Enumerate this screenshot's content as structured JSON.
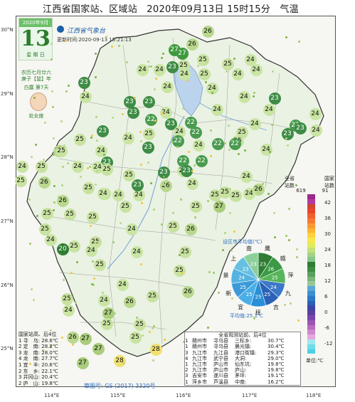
{
  "title": "江西省国家站、区域站　2020年09月13日 15时15分　气温",
  "calendar": {
    "date": "2020年9月",
    "day": "13",
    "weekday": "星 期 日",
    "lunar1": "农历七月廿六",
    "lunar2": "庚子【鼠】年",
    "solar_term": "白露 第7天",
    "zodiac": "处女座"
  },
  "logo_text": "江西省气象台",
  "update_time": "更新时间:2020-09-13 15:21:13",
  "lat_labels": [
    "30°N",
    "29°N",
    "28°N",
    "27°N",
    "26°N",
    "25°N"
  ],
  "lon_labels": [
    "114°E",
    "115°E",
    "116°E",
    "117°E",
    "118°E"
  ],
  "stations": [
    {
      "v": "26",
      "c": "#b9d88e"
    },
    {
      "v": "27",
      "c": "#3f9a3f"
    },
    {
      "v": "27",
      "c": "#3f9a3f"
    },
    {
      "v": "26",
      "c": "#b9d88e"
    },
    {
      "v": "25",
      "c": "#c8e2a0"
    },
    {
      "v": "24",
      "c": "#c9e5a3"
    },
    {
      "v": "25",
      "c": "#c8e2a0"
    },
    {
      "v": "23",
      "c": "#3e8c45"
    },
    {
      "v": "25",
      "c": "#c8e2a0"
    },
    {
      "v": "24",
      "c": "#c9e5a3"
    },
    {
      "v": "23",
      "c": "#3e8c45"
    },
    {
      "v": "24",
      "c": "#c9e5a3"
    },
    {
      "v": "24",
      "c": "#c9e5a3"
    },
    {
      "v": "24",
      "c": "#c9e5a3"
    },
    {
      "v": "24",
      "c": "#c9e5a3"
    },
    {
      "v": "25",
      "c": "#c8e2a0"
    },
    {
      "v": "24",
      "c": "#c9e5a3"
    },
    {
      "v": "24",
      "c": "#c9e5a3"
    },
    {
      "v": "23",
      "c": "#3e8c45"
    },
    {
      "v": "23",
      "c": "#3e8c45"
    },
    {
      "v": "24",
      "c": "#c9e5a3"
    },
    {
      "v": "22",
      "c": "#4a9b4f"
    },
    {
      "v": "23",
      "c": "#3e8c45"
    },
    {
      "v": "23",
      "c": "#3e8c45"
    },
    {
      "v": "24",
      "c": "#c9e5a3"
    },
    {
      "v": "22",
      "c": "#4a9b4f"
    },
    {
      "v": "24",
      "c": "#c9e5a3"
    },
    {
      "v": "24",
      "c": "#c9e5a3"
    },
    {
      "v": "24",
      "c": "#c9e5a3"
    },
    {
      "v": "23",
      "c": "#3e8c45"
    },
    {
      "v": "24",
      "c": "#c9e5a3"
    },
    {
      "v": "22",
      "c": "#4a9b4f"
    },
    {
      "v": "23",
      "c": "#3e8c45"
    },
    {
      "v": "24",
      "c": "#c9e5a3"
    },
    {
      "v": "23",
      "c": "#3e8c45"
    },
    {
      "v": "24",
      "c": "#c9e5a3"
    },
    {
      "v": "24",
      "c": "#c9e5a3"
    },
    {
      "v": "25",
      "c": "#c8e2a0"
    },
    {
      "v": "24",
      "c": "#c9e5a3"
    },
    {
      "v": "25",
      "c": "#c8e2a0"
    },
    {
      "v": "24",
      "c": "#c9e5a3"
    },
    {
      "v": "22",
      "c": "#4a9b4f"
    },
    {
      "v": "22",
      "c": "#4a9b4f"
    },
    {
      "v": "22",
      "c": "#4a9b4f"
    },
    {
      "v": "23",
      "c": "#3e8c45"
    },
    {
      "v": "25",
      "c": "#c8e2a0"
    },
    {
      "v": "24",
      "c": "#c9e5a3"
    },
    {
      "v": "24",
      "c": "#c9e5a3"
    },
    {
      "v": "25",
      "c": "#c8e2a0"
    },
    {
      "v": "23",
      "c": "#3e8c45"
    },
    {
      "v": "22",
      "c": "#4a9b4f"
    },
    {
      "v": "22",
      "c": "#4a9b4f"
    },
    {
      "v": "23",
      "c": "#3e8c45"
    },
    {
      "v": "24",
      "c": "#c9e5a3"
    },
    {
      "v": "25",
      "c": "#c8e2a0"
    },
    {
      "v": "26",
      "c": "#b9d88e"
    },
    {
      "v": "24",
      "c": "#c9e5a3"
    },
    {
      "v": "23",
      "c": "#3e8c45"
    },
    {
      "v": "25",
      "c": "#c8e2a0"
    },
    {
      "v": "25",
      "c": "#c8e2a0"
    },
    {
      "v": "24",
      "c": "#c9e5a3"
    },
    {
      "v": "25",
      "c": "#c8e2a0"
    },
    {
      "v": "24",
      "c": "#c9e5a3"
    },
    {
      "v": "26",
      "c": "#b9d88e"
    },
    {
      "v": "25",
      "c": "#c8e2a0"
    },
    {
      "v": "25",
      "c": "#c8e2a0"
    },
    {
      "v": "25",
      "c": "#c8e2a0"
    },
    {
      "v": "24",
      "c": "#c9e5a3"
    },
    {
      "v": "26",
      "c": "#b9d88e"
    },
    {
      "v": "24",
      "c": "#c9e5a3"
    },
    {
      "v": "22",
      "c": "#4a9b4f"
    },
    {
      "v": "23",
      "c": "#3e8c45"
    },
    {
      "v": "23",
      "c": "#3e8c45"
    },
    {
      "v": "24",
      "c": "#c9e5a3"
    },
    {
      "v": "24",
      "c": "#c9e5a3"
    },
    {
      "v": "26",
      "c": "#b9d88e"
    },
    {
      "v": "24",
      "c": "#c9e5a3"
    },
    {
      "v": "25",
      "c": "#c8e2a0"
    },
    {
      "v": "25",
      "c": "#c8e2a0"
    },
    {
      "v": "27",
      "c": "#aacd7c"
    },
    {
      "v": "25",
      "c": "#c8e2a0"
    },
    {
      "v": "26",
      "c": "#b9d88e"
    },
    {
      "v": "25",
      "c": "#c8e2a0"
    },
    {
      "v": "25",
      "c": "#c8e2a0"
    },
    {
      "v": "24",
      "c": "#c9e5a3"
    },
    {
      "v": "25",
      "c": "#c8e2a0"
    },
    {
      "v": "25",
      "c": "#c8e2a0"
    },
    {
      "v": "25",
      "c": "#c8e2a0"
    },
    {
      "v": "24",
      "c": "#c9e5a3"
    },
    {
      "v": "26",
      "c": "#b9d88e"
    },
    {
      "v": "25",
      "c": "#c8e2a0"
    },
    {
      "v": "25",
      "c": "#c8e2a0"
    },
    {
      "v": "25",
      "c": "#c8e2a0"
    },
    {
      "v": "24",
      "c": "#c9e5a3"
    },
    {
      "v": "25",
      "c": "#c8e2a0"
    },
    {
      "v": "25",
      "c": "#c8e2a0"
    },
    {
      "v": "24",
      "c": "#c9e5a3"
    },
    {
      "v": "25",
      "c": "#c8e2a0"
    },
    {
      "v": "25",
      "c": "#c8e2a0"
    },
    {
      "v": "24",
      "c": "#c9e5a3"
    },
    {
      "v": "26",
      "c": "#b9d88e"
    },
    {
      "v": "25",
      "c": "#c8e2a0"
    },
    {
      "v": "25",
      "c": "#c8e2a0"
    },
    {
      "v": "24",
      "c": "#c9e5a3"
    },
    {
      "v": "26",
      "c": "#b9d88e"
    },
    {
      "v": "24",
      "c": "#c9e5a3"
    },
    {
      "v": "20",
      "c": "#2e7d32"
    },
    {
      "v": "24",
      "c": "#c9e5a3"
    },
    {
      "v": "27",
      "c": "#aacd7c"
    },
    {
      "v": "25",
      "c": "#c8e2a0"
    },
    {
      "v": "27",
      "c": "#aacd7c"
    },
    {
      "v": "27",
      "c": "#aacd7c"
    },
    {
      "v": "26",
      "c": "#b9d88e"
    },
    {
      "v": "28",
      "c": "#f0e070"
    },
    {
      "v": "27",
      "c": "#aacd7c"
    },
    {
      "v": "28",
      "c": "#f0e070"
    },
    {
      "v": "25",
      "c": "#c8e2a0"
    },
    {
      "v": "25",
      "c": "#c8e2a0"
    }
  ],
  "legend": {
    "head_left": "全省\n站数",
    "head_right": "国家\n站数",
    "count_left": "619",
    "count_right": "91",
    "colors": [
      "#9a2a8a",
      "#b33aa0",
      "#d0452e",
      "#e8452c",
      "#f06030",
      "#f47a31",
      "#f89a33",
      "#fbb634",
      "#fdd23a",
      "#f7e64a",
      "#e1ec5a",
      "#c3e07a",
      "#a4d385",
      "#85c58e",
      "#2e7d32",
      "#3e8c45",
      "#5aa060",
      "#79b67a",
      "#98c898",
      "#5aa6d8",
      "#3b8fd0",
      "#2b78c4",
      "#2a5fb5",
      "#3a45a8",
      "#5a3fa0",
      "#7a45aa",
      "#9a55b5",
      "#b86ac0",
      "#d088cc",
      "#e4a8de",
      "#a0e6ee",
      "#6edde8",
      "#4ed0e4"
    ],
    "labels": [
      "42",
      "36",
      "30",
      "24",
      "18",
      "12",
      "6",
      "0",
      "-6",
      "-12"
    ],
    "unit": "单位:℃"
  },
  "pie": {
    "title": "设区市平均值(℃)",
    "avg_label": "平均值:25.1℃",
    "slices": [
      {
        "name": "鹰",
        "value": "23",
        "color": "#2e7d32"
      },
      {
        "name": "赣",
        "value": "26",
        "color": "#3a9a45"
      },
      {
        "name": "萍",
        "value": "25",
        "color": "#57b45a"
      },
      {
        "name": "九",
        "value": "24",
        "color": "#3c78c8"
      },
      {
        "name": "吉",
        "value": "25",
        "color": "#2b62b6"
      },
      {
        "name": "抚",
        "value": "25",
        "color": "#2a8fd6"
      },
      {
        "name": "宜",
        "value": "25",
        "color": "#4aaee6"
      },
      {
        "name": "新",
        "value": "25",
        "color": "#3d9ad8"
      },
      {
        "name": "景",
        "value": "24",
        "color": "#55b3e0"
      },
      {
        "name": "上",
        "value": "23",
        "color": "#66c0e2"
      },
      {
        "name": "南",
        "value": "23",
        "color": "#8bd09b"
      }
    ]
  },
  "rank_left": {
    "title": "国家站高、后4位",
    "rows": [
      "1 寻　乌: 28.6℃",
      "2 定　南: 28.2℃",
      "3 龙　南: 28.0℃",
      "4 龙　南: 27.7℃",
      "1 宜　丰: 20.6℃",
      "2 东　乡: 22.1℃",
      "3 井冈山: 20.4℃",
      "2 庐　山: 19.8℃"
    ]
  },
  "table": {
    "title": "全省观测站前、后4位",
    "rows": [
      [
        "1",
        "赣州市",
        "寻乌县",
        "三标乡:",
        "30.7℃"
      ],
      [
        "1",
        "赣州市",
        "寻乌县",
        "晨光镇:",
        "30.4℃"
      ],
      [
        "3",
        "九江市",
        "九江县",
        "港口街镇:",
        "29.3℃"
      ],
      [
        "4",
        "九江市",
        "武宁县",
        "大洞:",
        "29.0℃"
      ],
      [
        "1",
        "九江市",
        "庐山市",
        "仙东坑:",
        "19.8℃"
      ],
      [
        "2",
        "九江市",
        "庐山市",
        "庐山:",
        "19.8℃"
      ],
      [
        "3",
        "吉安市",
        "遂川县",
        "茅坪:",
        "19.1℃"
      ],
      [
        "1",
        "萍乡市",
        "芦溪县",
        "中南:",
        "16.2℃"
      ]
    ]
  },
  "audit": "审图号: GS (2017) 3320号"
}
